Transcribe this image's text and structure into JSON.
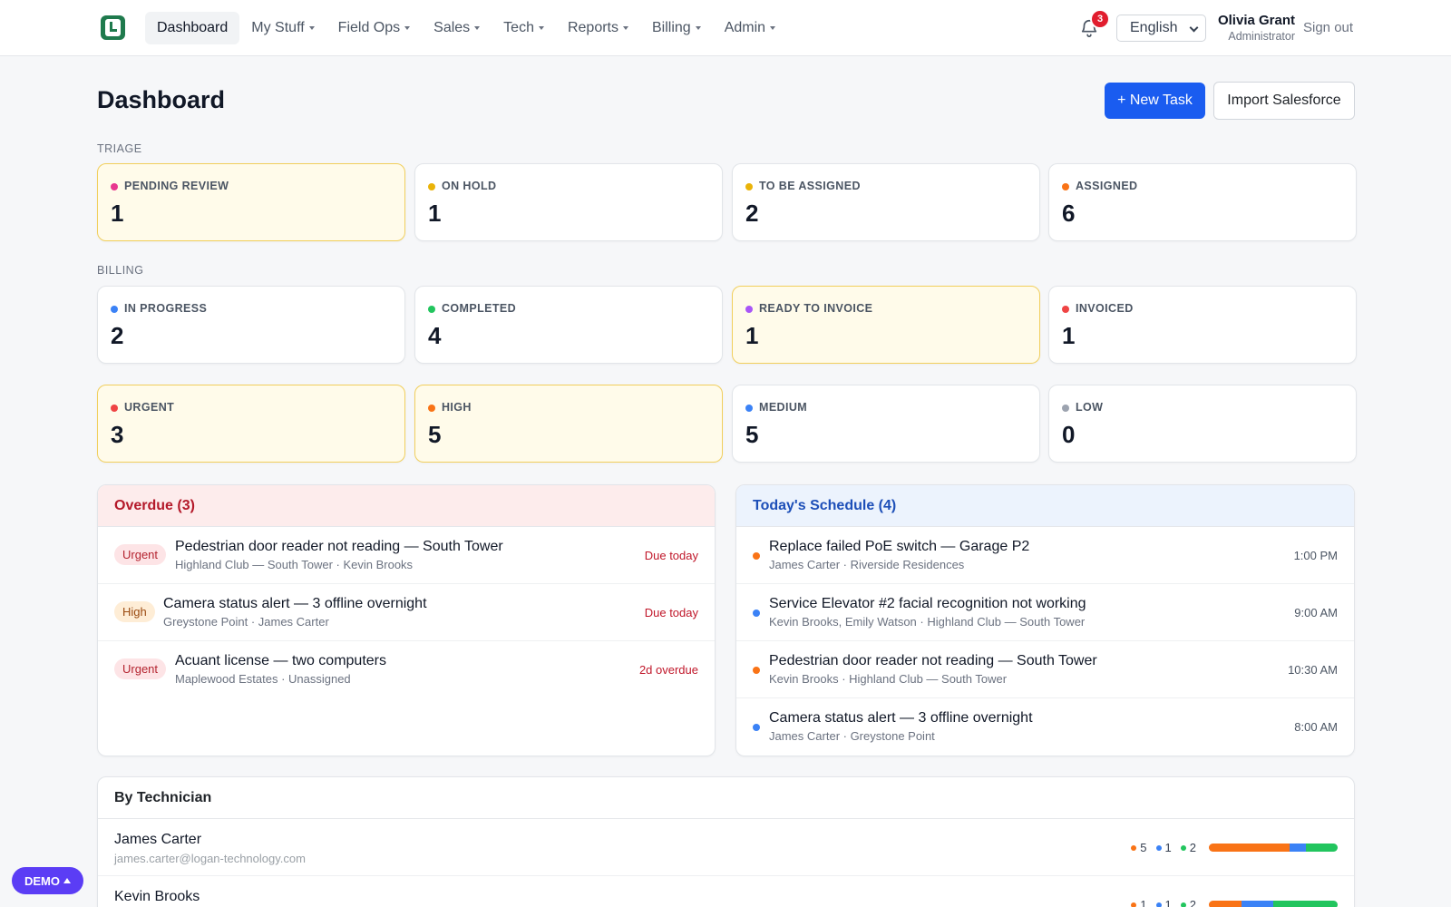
{
  "nav": {
    "items": [
      {
        "label": "Dashboard",
        "active": true,
        "dropdown": false
      },
      {
        "label": "My Stuff",
        "active": false,
        "dropdown": true
      },
      {
        "label": "Field Ops",
        "active": false,
        "dropdown": true
      },
      {
        "label": "Sales",
        "active": false,
        "dropdown": true
      },
      {
        "label": "Tech",
        "active": false,
        "dropdown": true
      },
      {
        "label": "Reports",
        "active": false,
        "dropdown": true
      },
      {
        "label": "Billing",
        "active": false,
        "dropdown": true
      },
      {
        "label": "Admin",
        "active": false,
        "dropdown": true
      }
    ],
    "notifications": "3",
    "language": "English",
    "user_name": "Olivia Grant",
    "user_role": "Administrator",
    "signout": "Sign out"
  },
  "header": {
    "title": "Dashboard",
    "new_task": "+ New Task",
    "import": "Import Salesforce"
  },
  "triage": {
    "label": "TRIAGE",
    "cards": [
      {
        "label": "PENDING REVIEW",
        "value": "1",
        "color": "#e8378f",
        "highlight": true
      },
      {
        "label": "ON HOLD",
        "value": "1",
        "color": "#eab308",
        "highlight": false
      },
      {
        "label": "TO BE ASSIGNED",
        "value": "2",
        "color": "#eab308",
        "highlight": false
      },
      {
        "label": "ASSIGNED",
        "value": "6",
        "color": "#f97316",
        "highlight": false
      }
    ]
  },
  "billing": {
    "label": "BILLING",
    "cards": [
      {
        "label": "IN PROGRESS",
        "value": "2",
        "color": "#3b82f6",
        "highlight": false
      },
      {
        "label": "COMPLETED",
        "value": "4",
        "color": "#22c55e",
        "highlight": false
      },
      {
        "label": "READY TO INVOICE",
        "value": "1",
        "color": "#a855f7",
        "highlight": true
      },
      {
        "label": "INVOICED",
        "value": "1",
        "color": "#ef4444",
        "highlight": false
      }
    ]
  },
  "priority": {
    "cards": [
      {
        "label": "URGENT",
        "value": "3",
        "color": "#ef4444",
        "highlight": true
      },
      {
        "label": "HIGH",
        "value": "5",
        "color": "#f97316",
        "highlight": true
      },
      {
        "label": "MEDIUM",
        "value": "5",
        "color": "#3b82f6",
        "highlight": false
      },
      {
        "label": "LOW",
        "value": "0",
        "color": "#9ca3af",
        "highlight": false
      }
    ]
  },
  "overdue": {
    "title": "Overdue (3)",
    "items": [
      {
        "badge": "Urgent",
        "level": "urgent",
        "title": "Pedestrian door reader not reading — South Tower",
        "sub": "Highland Club — South Tower · Kevin Brooks",
        "status": "Due today"
      },
      {
        "badge": "High",
        "level": "high",
        "title": "Camera status alert — 3 offline overnight",
        "sub": "Greystone Point · James Carter",
        "status": "Due today"
      },
      {
        "badge": "Urgent",
        "level": "urgent",
        "title": "Acuant license — two computers",
        "sub": "Maplewood Estates · Unassigned",
        "status": "2d overdue"
      }
    ]
  },
  "schedule": {
    "title": "Today's Schedule (4)",
    "items": [
      {
        "color": "#f97316",
        "title": "Replace failed PoE switch — Garage P2",
        "sub": "James Carter · Riverside Residences",
        "time": "1:00 PM"
      },
      {
        "color": "#3b82f6",
        "title": "Service Elevator #2 facial recognition not working",
        "sub": "Kevin Brooks, Emily Watson · Highland Club — South Tower",
        "time": "9:00 AM"
      },
      {
        "color": "#f97316",
        "title": "Pedestrian door reader not reading — South Tower",
        "sub": "Kevin Brooks · Highland Club — South Tower",
        "time": "10:30 AM"
      },
      {
        "color": "#3b82f6",
        "title": "Camera status alert — 3 offline overnight",
        "sub": "James Carter · Greystone Point",
        "time": "8:00 AM"
      }
    ]
  },
  "technicians": {
    "title": "By Technician",
    "colors": {
      "assigned": "#f97316",
      "in_progress": "#3b82f6",
      "completed": "#22c55e"
    },
    "items": [
      {
        "name": "James Carter",
        "email": "james.carter@logan-technology.com",
        "assigned": "5",
        "in_progress": "1",
        "completed": "2",
        "bar": [
          5,
          1,
          2
        ]
      },
      {
        "name": "Kevin Brooks",
        "email": "",
        "assigned": "1",
        "in_progress": "1",
        "completed": "2",
        "bar": [
          1,
          1,
          2
        ]
      }
    ]
  },
  "demo": "DEMO"
}
